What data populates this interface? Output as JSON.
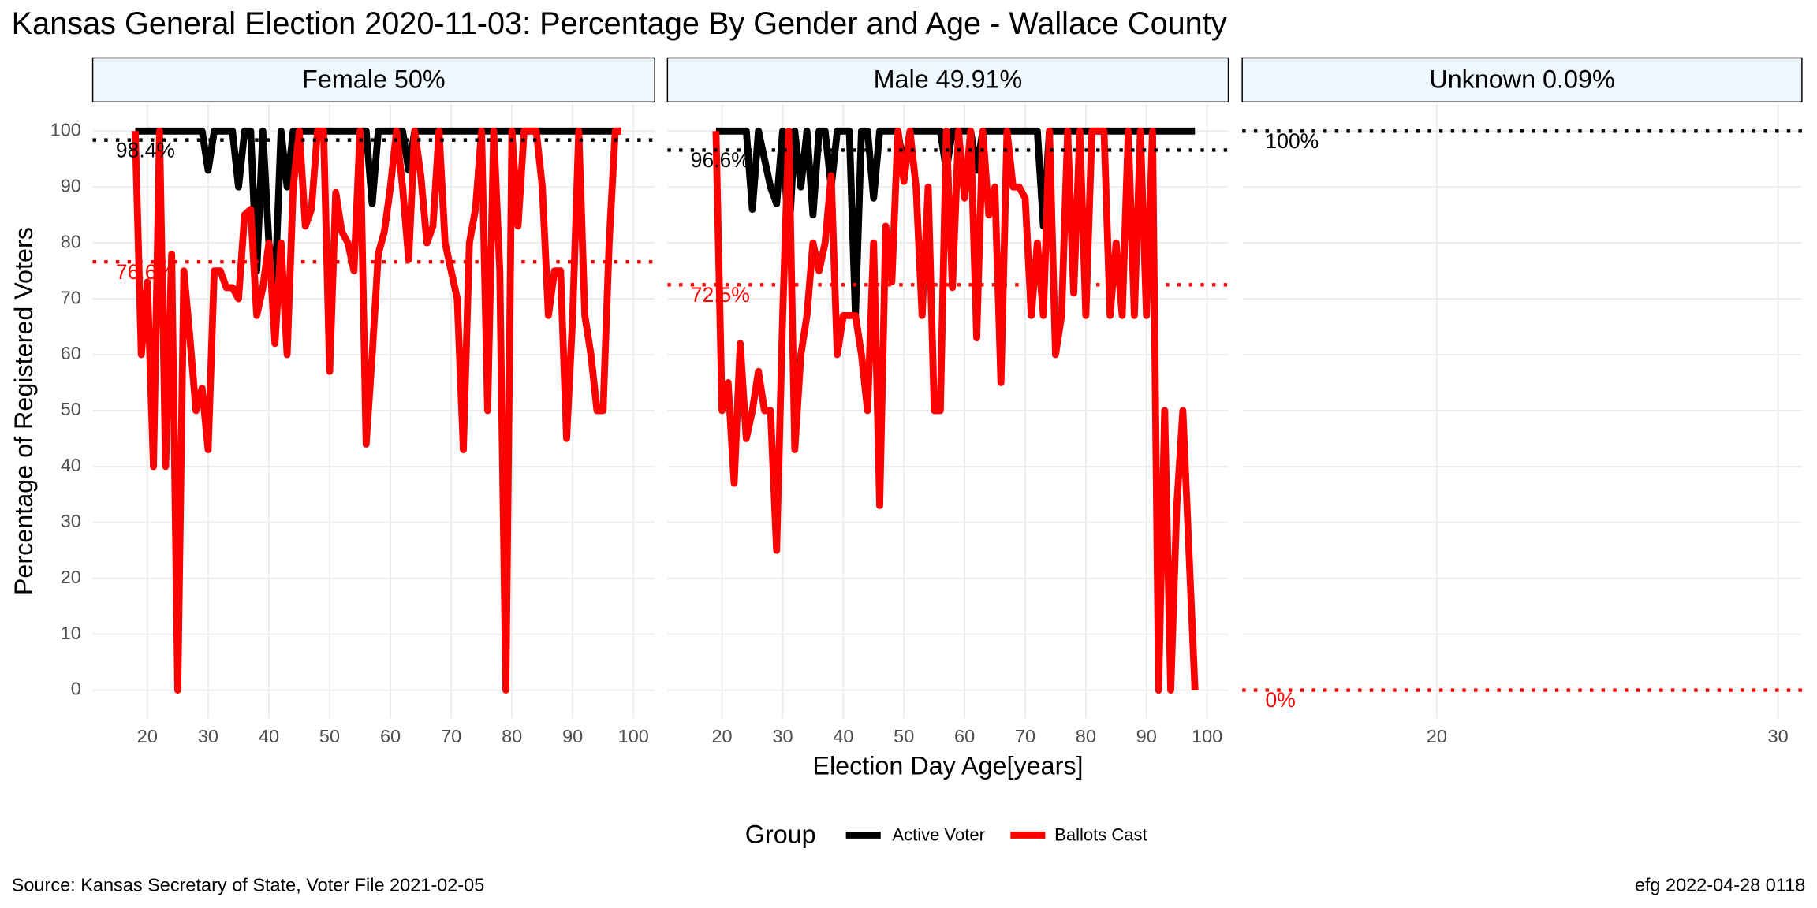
{
  "title": "Kansas General Election 2020-11-03:  Percentage By Gender and Age - Wallace County",
  "x_label": "Election Day Age[years]",
  "y_label": "Percentage of Registered Voters",
  "legend_title": "Group",
  "source": "Source:  Kansas Secretary of State, Voter File  2021-02-05",
  "credit": "efg 2022-04-28 0118",
  "chart_data": [
    {
      "type": "line",
      "title": "Female 50%",
      "x": [
        18,
        19,
        20,
        21,
        22,
        23,
        24,
        25,
        26,
        27,
        28,
        29,
        30,
        31,
        32,
        33,
        34,
        35,
        36,
        37,
        38,
        39,
        40,
        41,
        42,
        43,
        44,
        45,
        46,
        47,
        48,
        49,
        50,
        51,
        52,
        53,
        54,
        55,
        56,
        57,
        58,
        59,
        60,
        61,
        62,
        63,
        64,
        65,
        66,
        67,
        68,
        69,
        70,
        71,
        72,
        73,
        74,
        75,
        76,
        77,
        78,
        79,
        80,
        81,
        82,
        83,
        84,
        85,
        86,
        87,
        88,
        89,
        90,
        91,
        92,
        93,
        94,
        95,
        96,
        97,
        98
      ],
      "xlim": [
        11,
        103.5
      ],
      "xticks": [
        20,
        30,
        40,
        50,
        60,
        70,
        80,
        90,
        100
      ],
      "ylim": [
        -5,
        104.8
      ],
      "yticks": [
        0,
        10,
        20,
        30,
        40,
        50,
        60,
        70,
        80,
        90,
        100
      ],
      "grid": true,
      "series": [
        {
          "name": "Active Voter",
          "color": "#000000",
          "values": [
            100,
            100,
            100,
            100,
            100,
            100,
            100,
            100,
            100,
            100,
            100,
            100,
            93,
            100,
            100,
            100,
            100,
            90,
            100,
            100,
            75,
            100,
            80,
            72,
            100,
            90,
            100,
            100,
            100,
            100,
            100,
            100,
            100,
            100,
            100,
            100,
            100,
            100,
            100,
            87,
            100,
            100,
            100,
            100,
            100,
            93,
            100,
            100,
            100,
            100,
            100,
            100,
            100,
            100,
            100,
            100,
            100,
            100,
            100,
            100,
            100,
            100,
            100,
            100,
            100,
            100,
            100,
            100,
            100,
            100,
            100,
            100,
            100,
            100,
            100,
            100,
            100,
            100,
            100,
            100,
            100
          ]
        },
        {
          "name": "Ballots Cast",
          "color": "#ff0000",
          "values": [
            100,
            60,
            73,
            40,
            100,
            40,
            78,
            0,
            75,
            63,
            50,
            54,
            43,
            75,
            75,
            72,
            72,
            70,
            85,
            86,
            67,
            72,
            80,
            62,
            80,
            60,
            90,
            100,
            83,
            86,
            100,
            100,
            57,
            89,
            82,
            80,
            75,
            100,
            44,
            60,
            78,
            82,
            90,
            100,
            90,
            77,
            100,
            92,
            80,
            83,
            100,
            80,
            75,
            70,
            43,
            80,
            86,
            100,
            50,
            100,
            75,
            0,
            100,
            83,
            100,
            100,
            100,
            90,
            67,
            75,
            75,
            45,
            67,
            100,
            67,
            60,
            50,
            50,
            80,
            100,
            100
          ]
        }
      ],
      "hlines": [
        {
          "value": 98.4,
          "label": "98.4%",
          "color": "#000000"
        },
        {
          "value": 76.6,
          "label": "76.6%",
          "color": "#ff0000"
        }
      ]
    },
    {
      "type": "line",
      "title": "Male 49.91%",
      "x": [
        19,
        20,
        21,
        22,
        23,
        24,
        25,
        26,
        27,
        28,
        29,
        30,
        31,
        32,
        33,
        34,
        35,
        36,
        37,
        38,
        39,
        40,
        41,
        42,
        43,
        44,
        45,
        46,
        47,
        48,
        49,
        50,
        51,
        52,
        53,
        54,
        55,
        56,
        57,
        58,
        59,
        60,
        61,
        62,
        63,
        64,
        65,
        66,
        67,
        68,
        69,
        70,
        71,
        72,
        73,
        74,
        75,
        76,
        77,
        78,
        79,
        80,
        81,
        82,
        83,
        84,
        85,
        86,
        87,
        88,
        89,
        90,
        91,
        92,
        93,
        94,
        95,
        96,
        97,
        98
      ],
      "xlim": [
        11,
        103.5
      ],
      "xticks": [
        20,
        30,
        40,
        50,
        60,
        70,
        80,
        90,
        100
      ],
      "ylim": [
        -5,
        104.8
      ],
      "yticks": [
        0,
        10,
        20,
        30,
        40,
        50,
        60,
        70,
        80,
        90,
        100
      ],
      "grid": true,
      "series": [
        {
          "name": "Active Voter",
          "color": "#000000",
          "values": [
            100,
            100,
            100,
            100,
            100,
            100,
            86,
            100,
            95,
            90,
            87,
            100,
            80,
            100,
            90,
            100,
            85,
            100,
            100,
            90,
            100,
            100,
            100,
            67,
            100,
            100,
            88,
            100,
            100,
            100,
            100,
            93,
            100,
            100,
            100,
            100,
            100,
            100,
            93,
            100,
            100,
            100,
            100,
            93,
            100,
            100,
            100,
            100,
            100,
            100,
            100,
            100,
            100,
            100,
            83,
            100,
            100,
            100,
            100,
            100,
            100,
            100,
            100,
            100,
            100,
            100,
            100,
            100,
            100,
            100,
            100,
            100,
            100,
            100,
            100,
            100,
            100,
            100,
            100,
            100
          ]
        },
        {
          "name": "Ballots Cast",
          "color": "#ff0000",
          "values": [
            100,
            50,
            55,
            37,
            62,
            45,
            50,
            57,
            50,
            50,
            25,
            67,
            100,
            43,
            60,
            67,
            80,
            75,
            80,
            92,
            60,
            67,
            67,
            67,
            60,
            50,
            80,
            33,
            83,
            73,
            100,
            91,
            100,
            90,
            67,
            90,
            50,
            50,
            100,
            72,
            100,
            88,
            100,
            63,
            100,
            85,
            90,
            55,
            100,
            90,
            90,
            88,
            67,
            80,
            67,
            100,
            60,
            67,
            100,
            71,
            100,
            67,
            100,
            100,
            100,
            67,
            80,
            67,
            100,
            67,
            100,
            67,
            100,
            0,
            50,
            0,
            33,
            50,
            25,
            0
          ]
        }
      ],
      "hlines": [
        {
          "value": 96.6,
          "label": "96.6%",
          "color": "#000000"
        },
        {
          "value": 72.5,
          "label": "72.5%",
          "color": "#ff0000"
        }
      ]
    },
    {
      "type": "line",
      "title": "Unknown 0.09%",
      "x": [],
      "xlim": [
        14.3,
        30.7
      ],
      "xticks": [
        20,
        30
      ],
      "ylim": [
        -5,
        104.8
      ],
      "yticks": [
        0,
        10,
        20,
        30,
        40,
        50,
        60,
        70,
        80,
        90,
        100
      ],
      "grid": true,
      "series": [],
      "hlines": [
        {
          "value": 100,
          "label": "100%",
          "color": "#000000"
        },
        {
          "value": 0,
          "label": "0%",
          "color": "#ff0000"
        }
      ]
    }
  ]
}
